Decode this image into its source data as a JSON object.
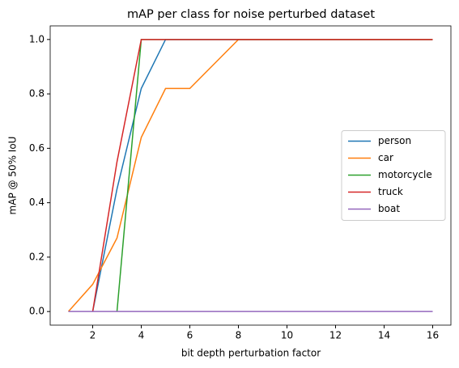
{
  "chart_data": {
    "type": "line",
    "title": "mAP per class for noise perturbed dataset",
    "xlabel": "bit depth perturbation factor",
    "ylabel": "mAP @ 50% IoU",
    "x": [
      1,
      2,
      3,
      4,
      5,
      6,
      7,
      8,
      9,
      10,
      11,
      12,
      13,
      14,
      15,
      16
    ],
    "series": [
      {
        "name": "person",
        "color": "#1f77b4",
        "values": [
          null,
          0,
          0.45,
          0.82,
          1,
          1,
          1,
          1,
          1,
          1,
          1,
          1,
          1,
          1,
          1,
          1
        ]
      },
      {
        "name": "car",
        "color": "#ff7f0e",
        "values": [
          0,
          0.1,
          0.27,
          0.64,
          0.82,
          0.82,
          0.91,
          1,
          1,
          1,
          1,
          1,
          1,
          1,
          1,
          1
        ]
      },
      {
        "name": "motorcycle",
        "color": "#2ca02c",
        "values": [
          null,
          null,
          0,
          1,
          1,
          1,
          1,
          1,
          1,
          1,
          1,
          1,
          1,
          1,
          1,
          1
        ]
      },
      {
        "name": "truck",
        "color": "#d62728",
        "values": [
          null,
          0,
          0.55,
          1,
          1,
          1,
          1,
          1,
          1,
          1,
          1,
          1,
          1,
          1,
          1,
          1
        ]
      },
      {
        "name": "boat",
        "color": "#9467bd",
        "values": [
          0,
          0,
          0,
          0,
          0,
          0,
          0,
          0,
          0,
          0,
          0,
          0,
          0,
          0,
          0,
          0
        ]
      }
    ],
    "xlim": [
      0.25,
      16.75
    ],
    "xticks": [
      2,
      4,
      6,
      8,
      10,
      12,
      14,
      16
    ],
    "ylim": [
      -0.05,
      1.05
    ],
    "yticks": [
      {
        "value": 0,
        "label": "0.0"
      },
      {
        "value": 0.2,
        "label": "0.2"
      },
      {
        "value": 0.4,
        "label": "0.4"
      },
      {
        "value": 0.6,
        "label": "0.6"
      },
      {
        "value": 0.8,
        "label": "0.8"
      },
      {
        "value": 1,
        "label": "1.0"
      }
    ],
    "legend": "center right"
  }
}
